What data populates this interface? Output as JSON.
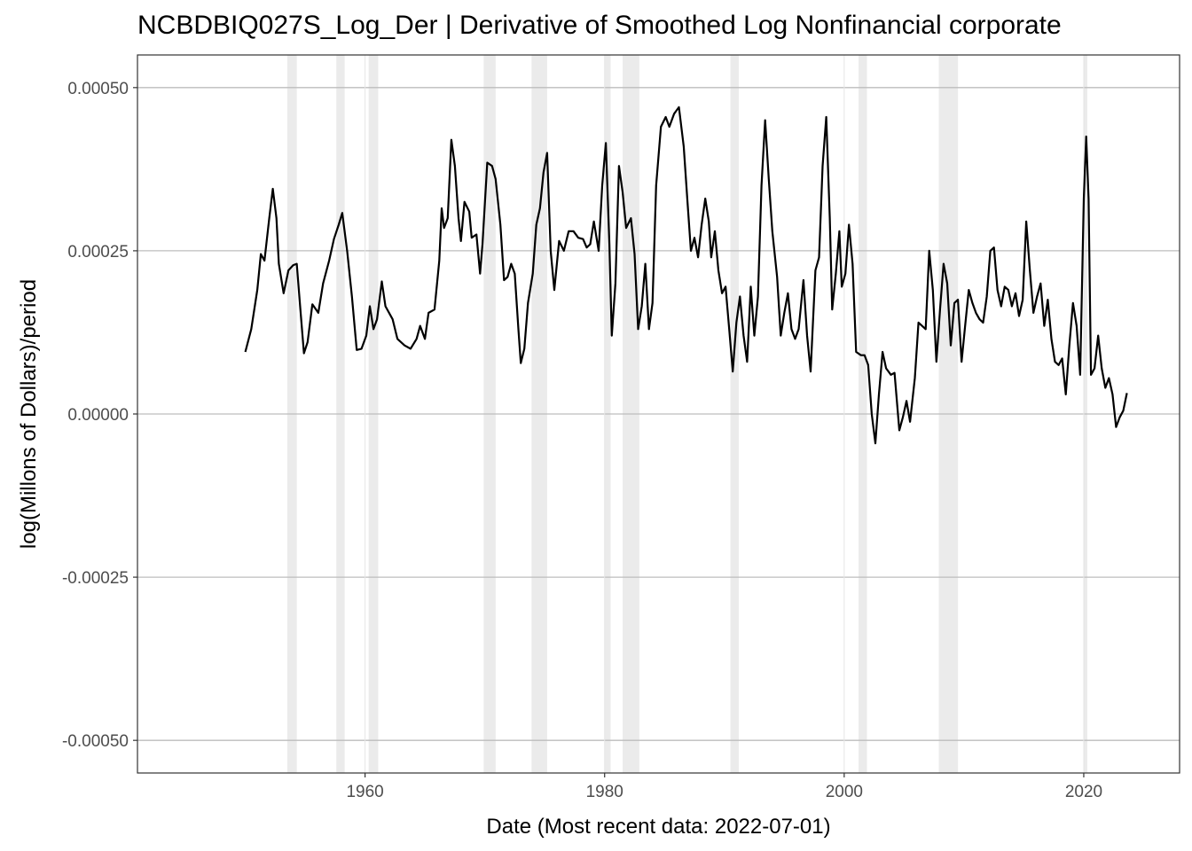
{
  "chart_data": {
    "type": "line",
    "title": "NCBDBIQ027S_Log_Der | Derivative of Smoothed Log Nonfinancial corporate",
    "xlabel": "Date (Most recent data: 2022-07-01)",
    "ylabel": "log(Millons of Dollars)/period",
    "xlim": [
      1941.0,
      2028.0
    ],
    "ylim": [
      -0.00055,
      0.00055
    ],
    "x_ticks": [
      1960,
      1980,
      2000,
      2020
    ],
    "x_tick_labels": [
      "1960",
      "1980",
      "2000",
      "2020"
    ],
    "y_ticks": [
      0.0005,
      0.00025,
      0.0,
      -0.00025,
      -0.0005
    ],
    "y_tick_labels": [
      "0.00050",
      "0.00025",
      "0.00000",
      "-0.00025",
      "-0.00050"
    ],
    "grid": true,
    "recessions": [
      [
        1953.5,
        1954.3
      ],
      [
        1957.6,
        1958.3
      ],
      [
        1960.3,
        1961.1
      ],
      [
        1969.9,
        1970.9
      ],
      [
        1973.9,
        1975.2
      ],
      [
        1980.0,
        1980.5
      ],
      [
        1981.5,
        1982.9
      ],
      [
        1990.5,
        1991.2
      ],
      [
        2001.2,
        2001.9
      ],
      [
        2007.9,
        2009.5
      ],
      [
        2020.0,
        2020.3
      ]
    ],
    "series": [
      {
        "values": [
          [
            1950.0,
            9.5e-05
          ],
          [
            1950.5,
            0.00013
          ],
          [
            1951.0,
            0.00019
          ],
          [
            1951.3,
            0.000245
          ],
          [
            1951.6,
            0.000235
          ],
          [
            1952.0,
            0.0003
          ],
          [
            1952.3,
            0.000345
          ],
          [
            1952.6,
            0.0003
          ],
          [
            1952.8,
            0.00023
          ],
          [
            1953.2,
            0.000185
          ],
          [
            1953.6,
            0.00022
          ],
          [
            1954.0,
            0.000228
          ],
          [
            1954.3,
            0.00023
          ],
          [
            1954.6,
            0.00016
          ],
          [
            1954.9,
            9.3e-05
          ],
          [
            1955.2,
            0.00011
          ],
          [
            1955.6,
            0.000168
          ],
          [
            1956.1,
            0.000155
          ],
          [
            1956.5,
            0.0002
          ],
          [
            1957.0,
            0.000235
          ],
          [
            1957.4,
            0.000268
          ],
          [
            1957.8,
            0.00029
          ],
          [
            1958.1,
            0.000308
          ],
          [
            1958.5,
            0.00025
          ],
          [
            1958.9,
            0.00018
          ],
          [
            1959.3,
            9.8e-05
          ],
          [
            1959.7,
            0.0001
          ],
          [
            1960.1,
            0.00012
          ],
          [
            1960.4,
            0.000165
          ],
          [
            1960.7,
            0.00013
          ],
          [
            1961.0,
            0.000145
          ],
          [
            1961.4,
            0.000203
          ],
          [
            1961.7,
            0.000165
          ],
          [
            1962.3,
            0.000145
          ],
          [
            1962.7,
            0.000115
          ],
          [
            1963.3,
            0.000105
          ],
          [
            1963.8,
            0.0001
          ],
          [
            1964.3,
            0.000115
          ],
          [
            1964.6,
            0.000135
          ],
          [
            1965.0,
            0.000115
          ],
          [
            1965.3,
            0.000155
          ],
          [
            1965.8,
            0.00016
          ],
          [
            1966.2,
            0.000235
          ],
          [
            1966.4,
            0.000315
          ],
          [
            1966.6,
            0.000285
          ],
          [
            1966.9,
            0.0003
          ],
          [
            1967.2,
            0.00042
          ],
          [
            1967.5,
            0.00038
          ],
          [
            1967.8,
            0.0003
          ],
          [
            1968.0,
            0.000265
          ],
          [
            1968.3,
            0.000325
          ],
          [
            1968.7,
            0.00031
          ],
          [
            1968.9,
            0.00027
          ],
          [
            1969.3,
            0.000275
          ],
          [
            1969.6,
            0.000215
          ],
          [
            1969.8,
            0.00026
          ],
          [
            1970.2,
            0.000385
          ],
          [
            1970.6,
            0.00038
          ],
          [
            1970.9,
            0.00036
          ],
          [
            1971.3,
            0.00029
          ],
          [
            1971.6,
            0.000205
          ],
          [
            1971.9,
            0.00021
          ],
          [
            1972.2,
            0.00023
          ],
          [
            1972.5,
            0.000215
          ],
          [
            1972.8,
            0.00013
          ],
          [
            1973.0,
            7.8e-05
          ],
          [
            1973.3,
            0.0001
          ],
          [
            1973.6,
            0.00017
          ],
          [
            1974.0,
            0.000215
          ],
          [
            1974.3,
            0.00029
          ],
          [
            1974.6,
            0.000315
          ],
          [
            1974.9,
            0.00037
          ],
          [
            1975.2,
            0.0004
          ],
          [
            1975.5,
            0.00025
          ],
          [
            1975.8,
            0.00019
          ],
          [
            1976.2,
            0.000265
          ],
          [
            1976.6,
            0.00025
          ],
          [
            1977.0,
            0.00028
          ],
          [
            1977.4,
            0.00028
          ],
          [
            1977.8,
            0.00027
          ],
          [
            1978.2,
            0.000268
          ],
          [
            1978.5,
            0.000255
          ],
          [
            1978.8,
            0.00026
          ],
          [
            1979.1,
            0.000295
          ],
          [
            1979.5,
            0.00025
          ],
          [
            1979.8,
            0.00035
          ],
          [
            1980.1,
            0.000415
          ],
          [
            1980.4,
            0.00026
          ],
          [
            1980.6,
            0.00012
          ],
          [
            1980.9,
            0.0002
          ],
          [
            1981.2,
            0.00038
          ],
          [
            1981.5,
            0.00034
          ],
          [
            1981.8,
            0.000285
          ],
          [
            1982.2,
            0.0003
          ],
          [
            1982.5,
            0.000245
          ],
          [
            1982.8,
            0.00013
          ],
          [
            1983.1,
            0.000165
          ],
          [
            1983.4,
            0.00023
          ],
          [
            1983.7,
            0.00013
          ],
          [
            1984.0,
            0.00017
          ],
          [
            1984.3,
            0.00035
          ],
          [
            1984.7,
            0.00044
          ],
          [
            1985.1,
            0.000455
          ],
          [
            1985.4,
            0.00044
          ],
          [
            1985.8,
            0.00046
          ],
          [
            1986.2,
            0.00047
          ],
          [
            1986.6,
            0.00041
          ],
          [
            1986.9,
            0.00033
          ],
          [
            1987.2,
            0.00025
          ],
          [
            1987.5,
            0.00027
          ],
          [
            1987.8,
            0.00024
          ],
          [
            1988.1,
            0.00029
          ],
          [
            1988.4,
            0.00033
          ],
          [
            1988.7,
            0.000295
          ],
          [
            1988.9,
            0.00024
          ],
          [
            1989.2,
            0.00028
          ],
          [
            1989.5,
            0.00022
          ],
          [
            1989.8,
            0.000185
          ],
          [
            1990.1,
            0.000195
          ],
          [
            1990.4,
            0.00013
          ],
          [
            1990.7,
            6.5e-05
          ],
          [
            1991.0,
            0.00014
          ],
          [
            1991.3,
            0.00018
          ],
          [
            1991.6,
            0.00012
          ],
          [
            1991.9,
            8e-05
          ],
          [
            1992.2,
            0.000195
          ],
          [
            1992.5,
            0.00012
          ],
          [
            1992.8,
            0.00018
          ],
          [
            1993.1,
            0.00035
          ],
          [
            1993.4,
            0.00045
          ],
          [
            1993.7,
            0.00036
          ],
          [
            1994.0,
            0.00028
          ],
          [
            1994.4,
            0.00021
          ],
          [
            1994.7,
            0.00012
          ],
          [
            1995.0,
            0.000155
          ],
          [
            1995.3,
            0.000185
          ],
          [
            1995.6,
            0.00013
          ],
          [
            1995.9,
            0.000115
          ],
          [
            1996.2,
            0.00013
          ],
          [
            1996.6,
            0.000205
          ],
          [
            1996.9,
            0.00012
          ],
          [
            1997.2,
            6.5e-05
          ],
          [
            1997.6,
            0.00022
          ],
          [
            1997.9,
            0.00024
          ],
          [
            1998.2,
            0.00038
          ],
          [
            1998.5,
            0.000455
          ],
          [
            1998.8,
            0.0003
          ],
          [
            1999.0,
            0.00016
          ],
          [
            1999.3,
            0.000215
          ],
          [
            1999.6,
            0.00028
          ],
          [
            1999.8,
            0.000195
          ],
          [
            2000.1,
            0.000215
          ],
          [
            2000.4,
            0.00029
          ],
          [
            2000.7,
            0.00023
          ],
          [
            2001.0,
            9.5e-05
          ],
          [
            2001.4,
            9e-05
          ],
          [
            2001.7,
            9e-05
          ],
          [
            2002.0,
            7.5e-05
          ],
          [
            2002.3,
            0.0
          ],
          [
            2002.6,
            -4.5e-05
          ],
          [
            2002.9,
            3e-05
          ],
          [
            2003.2,
            9.5e-05
          ],
          [
            2003.5,
            7e-05
          ],
          [
            2003.9,
            6e-05
          ],
          [
            2004.2,
            6.3e-05
          ],
          [
            2004.6,
            -2.5e-05
          ],
          [
            2004.9,
            -5e-06
          ],
          [
            2005.2,
            2e-05
          ],
          [
            2005.5,
            -1.2e-05
          ],
          [
            2005.9,
            5.5e-05
          ],
          [
            2006.2,
            0.00014
          ],
          [
            2006.5,
            0.000135
          ],
          [
            2006.8,
            0.00013
          ],
          [
            2007.1,
            0.00025
          ],
          [
            2007.4,
            0.00019
          ],
          [
            2007.7,
            8e-05
          ],
          [
            2008.0,
            0.00016
          ],
          [
            2008.3,
            0.00023
          ],
          [
            2008.6,
            0.0002
          ],
          [
            2008.9,
            0.000105
          ],
          [
            2009.2,
            0.00017
          ],
          [
            2009.5,
            0.000175
          ],
          [
            2009.8,
            8e-05
          ],
          [
            2010.1,
            0.000135
          ],
          [
            2010.4,
            0.00019
          ],
          [
            2010.7,
            0.00017
          ],
          [
            2011.0,
            0.000155
          ],
          [
            2011.3,
            0.000145
          ],
          [
            2011.6,
            0.00014
          ],
          [
            2011.9,
            0.00018
          ],
          [
            2012.2,
            0.00025
          ],
          [
            2012.5,
            0.000255
          ],
          [
            2012.8,
            0.00019
          ],
          [
            2013.1,
            0.000165
          ],
          [
            2013.4,
            0.000195
          ],
          [
            2013.7,
            0.00019
          ],
          [
            2014.0,
            0.000165
          ],
          [
            2014.3,
            0.000185
          ],
          [
            2014.6,
            0.00015
          ],
          [
            2014.9,
            0.000175
          ],
          [
            2015.2,
            0.000295
          ],
          [
            2015.5,
            0.00022
          ],
          [
            2015.8,
            0.000155
          ],
          [
            2016.1,
            0.00018
          ],
          [
            2016.4,
            0.0002
          ],
          [
            2016.7,
            0.000135
          ],
          [
            2017.0,
            0.000175
          ],
          [
            2017.3,
            0.000115
          ],
          [
            2017.6,
            8e-05
          ],
          [
            2017.9,
            7.5e-05
          ],
          [
            2018.2,
            8.5e-05
          ],
          [
            2018.5,
            3e-05
          ],
          [
            2018.8,
            0.000105
          ],
          [
            2019.1,
            0.00017
          ],
          [
            2019.4,
            0.000135
          ],
          [
            2019.7,
            6e-05
          ],
          [
            2020.0,
            0.00033
          ],
          [
            2020.2,
            0.000425
          ],
          [
            2020.4,
            0.00033
          ],
          [
            2020.6,
            6e-05
          ],
          [
            2020.9,
            7e-05
          ],
          [
            2021.2,
            0.00012
          ],
          [
            2021.5,
            7e-05
          ],
          [
            2021.8,
            4e-05
          ],
          [
            2022.1,
            5.5e-05
          ],
          [
            2022.4,
            3e-05
          ],
          [
            2022.7,
            -2e-05
          ],
          [
            2023.0,
            -5e-06
          ],
          [
            2023.3,
            5e-06
          ],
          [
            2023.6,
            3.2e-05
          ]
        ]
      }
    ]
  }
}
